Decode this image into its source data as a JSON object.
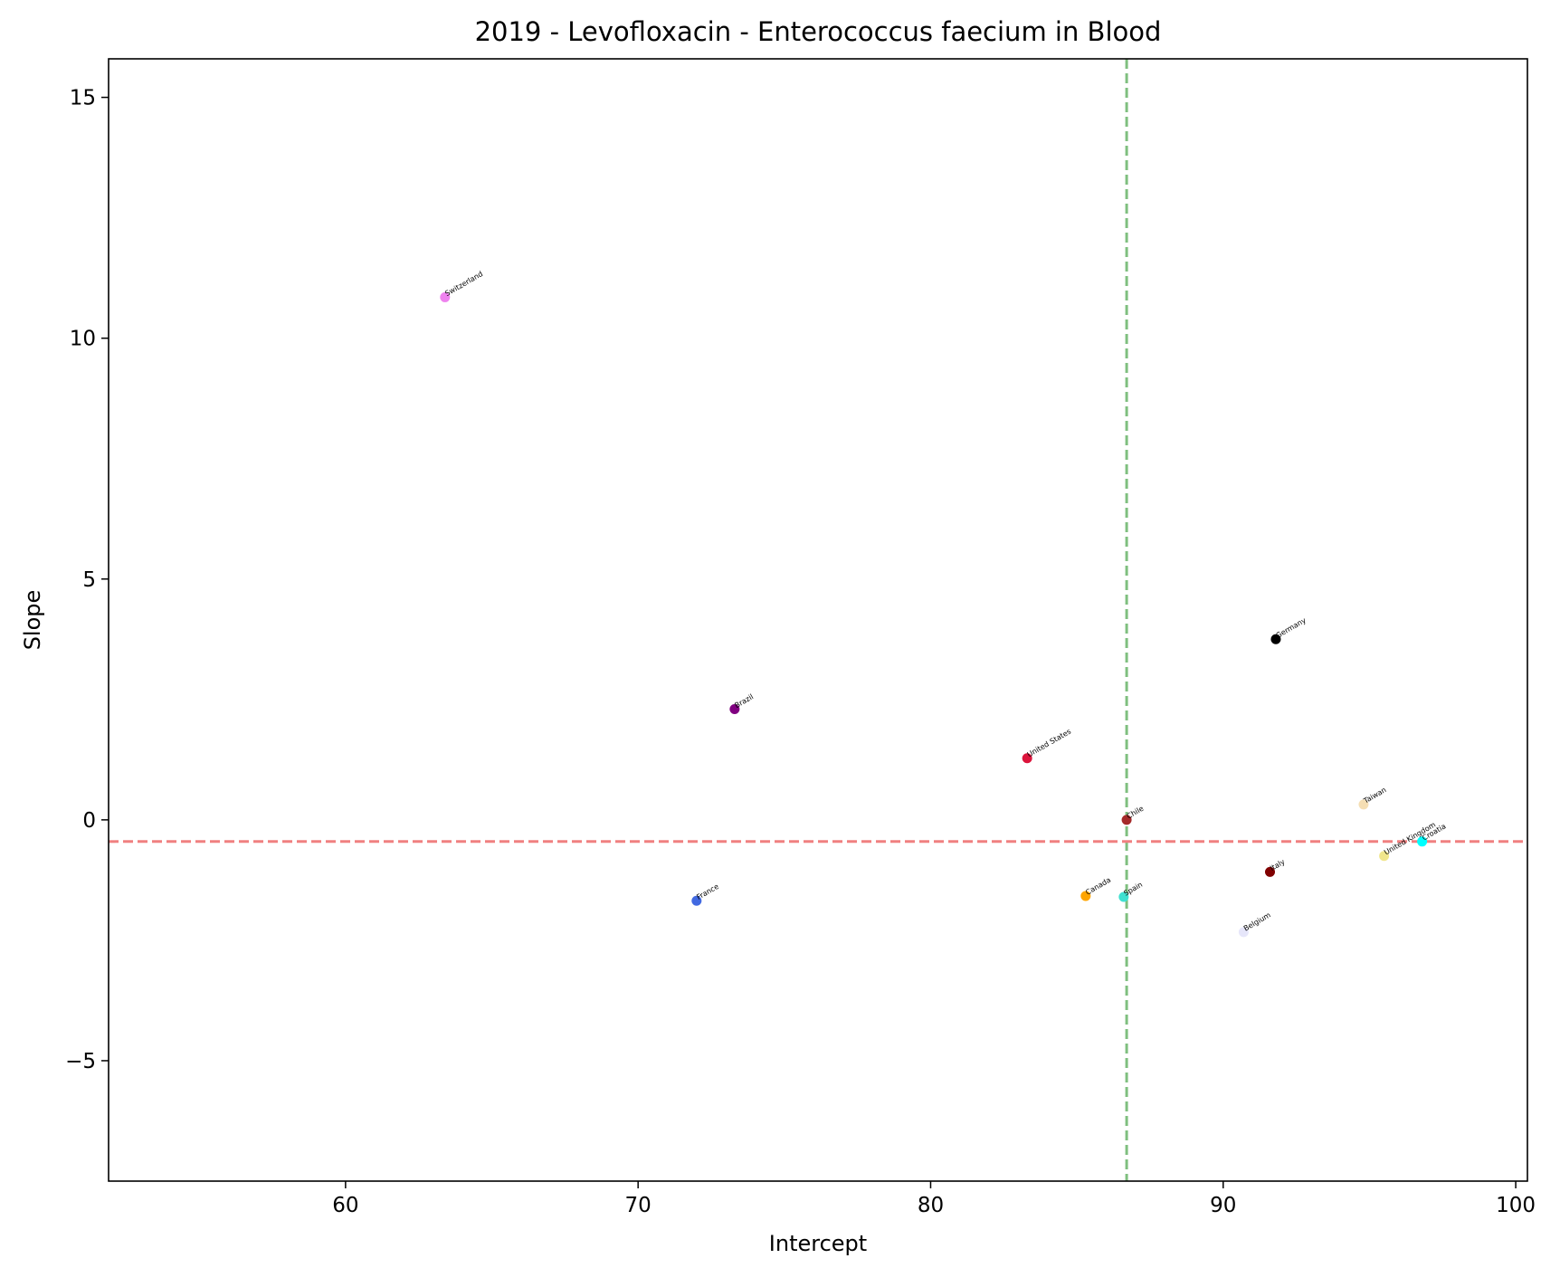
{
  "chart_data": {
    "type": "scatter",
    "title": "2019 - Levofloxacin - Enterococcus faecium in Blood",
    "xlabel": "Intercept",
    "ylabel": "Slope",
    "xlim": [
      51.9,
      100.4
    ],
    "ylim": [
      -7.5,
      15.8
    ],
    "xticks": [
      60,
      70,
      80,
      90,
      100
    ],
    "yticks": [
      -5,
      0,
      5,
      10,
      15
    ],
    "xtick_labels": [
      "60",
      "70",
      "80",
      "90",
      "100"
    ],
    "ytick_labels": [
      "−5",
      "0",
      "5",
      "10",
      "15"
    ],
    "grid": false,
    "legend": "none",
    "reference_lines": {
      "vertical": {
        "x": 86.7,
        "color": "#7fbf7f",
        "style": "dashed"
      },
      "horizontal": {
        "y": -0.45,
        "color": "#f08080",
        "style": "dashed"
      }
    },
    "points": [
      {
        "label": "Switzerland",
        "x": 63.4,
        "y": 10.85,
        "color": "#ee82ee"
      },
      {
        "label": "Germany",
        "x": 91.8,
        "y": 3.75,
        "color": "#000000"
      },
      {
        "label": "Brazil",
        "x": 73.3,
        "y": 2.3,
        "color": "#800080"
      },
      {
        "label": "United States",
        "x": 83.3,
        "y": 1.28,
        "color": "#dc143c"
      },
      {
        "label": "Chile",
        "x": 86.7,
        "y": 0.0,
        "color": "#a52a2a"
      },
      {
        "label": "Taiwan",
        "x": 94.8,
        "y": 0.32,
        "color": "#f5deb3"
      },
      {
        "label": "Croatia",
        "x": 96.8,
        "y": -0.45,
        "color": "#00ffff"
      },
      {
        "label": "United Kingdom",
        "x": 95.5,
        "y": -0.75,
        "color": "#f0e68c"
      },
      {
        "label": "Italy",
        "x": 91.6,
        "y": -1.08,
        "color": "#800000"
      },
      {
        "label": "France",
        "x": 72.0,
        "y": -1.68,
        "color": "#4169e1"
      },
      {
        "label": "Canada",
        "x": 85.3,
        "y": -1.58,
        "color": "#ffa500"
      },
      {
        "label": "Spain",
        "x": 86.6,
        "y": -1.6,
        "color": "#40e0d0"
      },
      {
        "label": "Belgium",
        "x": 90.7,
        "y": -2.33,
        "color": "#e6e6fa"
      }
    ]
  }
}
